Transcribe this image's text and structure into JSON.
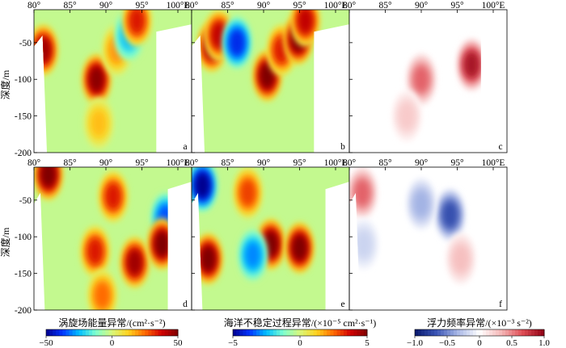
{
  "figure": {
    "ylabel": "深度/m",
    "lon_ticks": [
      "80°",
      "85°",
      "90°",
      "95°",
      "100°E"
    ],
    "depth_ticks": [
      "-50",
      "-100",
      "-150",
      "-200"
    ]
  },
  "chart_data": [
    {
      "type": "heatmap",
      "panel": "a",
      "variable": "eddy_energy_anomaly",
      "x": [
        80,
        85,
        90,
        95,
        100
      ],
      "ylim": [
        -200,
        -5
      ],
      "xlim": [
        80,
        100
      ],
      "colorbar": "a",
      "features": [
        {
          "lon": 81.3,
          "depth": -60,
          "value": 45
        },
        {
          "lon": 88.7,
          "depth": -100,
          "value": 48
        },
        {
          "lon": 91.5,
          "depth": -60,
          "value": 20
        },
        {
          "lon": 93.2,
          "depth": -40,
          "value": -25
        },
        {
          "lon": 94.3,
          "depth": -20,
          "value": 35
        },
        {
          "lon": 89,
          "depth": -160,
          "value": 15
        }
      ]
    },
    {
      "type": "heatmap",
      "panel": "b",
      "variable": "ocean_instability_anomaly",
      "x": [
        80,
        85,
        90,
        95,
        100
      ],
      "ylim": [
        -200,
        -5
      ],
      "xlim": [
        80,
        100
      ],
      "colorbar": "b",
      "features": [
        {
          "lon": 82.8,
          "depth": -55,
          "value": 4.5
        },
        {
          "lon": 83.8,
          "depth": -40,
          "value": 4
        },
        {
          "lon": 86.3,
          "depth": -50,
          "value": -4
        },
        {
          "lon": 90.5,
          "depth": -95,
          "value": 5
        },
        {
          "lon": 92.5,
          "depth": -60,
          "value": 3.5
        },
        {
          "lon": 94.8,
          "depth": -45,
          "value": 5
        },
        {
          "lon": 95.8,
          "depth": -20,
          "value": 4
        }
      ]
    },
    {
      "type": "heatmap",
      "panel": "c",
      "variable": "buoyancy_frequency_anomaly",
      "x": [
        80,
        85,
        90,
        95,
        100
      ],
      "ylim": [
        -200,
        -5
      ],
      "xlim": [
        80,
        100
      ],
      "colorbar": "c",
      "features": [
        {
          "lon": 97,
          "depth": -80,
          "value": 0.9
        },
        {
          "lon": 90,
          "depth": -100,
          "value": 0.6
        },
        {
          "lon": 88,
          "depth": -150,
          "value": 0.25
        }
      ]
    },
    {
      "type": "heatmap",
      "panel": "d",
      "variable": "eddy_energy_anomaly",
      "x": [
        80,
        85,
        90,
        95,
        100
      ],
      "ylim": [
        -200,
        -5
      ],
      "xlim": [
        80,
        100
      ],
      "colorbar": "a",
      "features": [
        {
          "lon": 82,
          "depth": -15,
          "value": 50
        },
        {
          "lon": 91,
          "depth": -45,
          "value": 35
        },
        {
          "lon": 98.3,
          "depth": -75,
          "value": -35
        },
        {
          "lon": 88.5,
          "depth": -120,
          "value": 35
        },
        {
          "lon": 94,
          "depth": -135,
          "value": 45
        },
        {
          "lon": 97.8,
          "depth": -110,
          "value": 50
        },
        {
          "lon": 89.5,
          "depth": -180,
          "value": 25
        }
      ]
    },
    {
      "type": "heatmap",
      "panel": "e",
      "variable": "ocean_instability_anomaly",
      "x": [
        80,
        85,
        90,
        95,
        100
      ],
      "ylim": [
        -200,
        -5
      ],
      "xlim": [
        80,
        100
      ],
      "colorbar": "b",
      "features": [
        {
          "lon": 81.5,
          "depth": -30,
          "value": -5
        },
        {
          "lon": 82.3,
          "depth": -130,
          "value": 5
        },
        {
          "lon": 91,
          "depth": -110,
          "value": 5
        },
        {
          "lon": 95,
          "depth": -115,
          "value": 5
        },
        {
          "lon": 88.5,
          "depth": -125,
          "value": -3
        },
        {
          "lon": 87.8,
          "depth": -40,
          "value": 3
        }
      ]
    },
    {
      "type": "heatmap",
      "panel": "f",
      "variable": "buoyancy_frequency_anomaly",
      "x": [
        80,
        85,
        90,
        95,
        100
      ],
      "ylim": [
        -200,
        -5
      ],
      "xlim": [
        80,
        100
      ],
      "colorbar": "c",
      "features": [
        {
          "lon": 81.8,
          "depth": -40,
          "value": 0.6
        },
        {
          "lon": 94,
          "depth": -70,
          "value": -0.7
        },
        {
          "lon": 90,
          "depth": -55,
          "value": -0.35
        },
        {
          "lon": 95.5,
          "depth": -130,
          "value": 0.3
        },
        {
          "lon": 82,
          "depth": -110,
          "value": -0.2
        }
      ]
    }
  ],
  "colorbars": {
    "a": {
      "label": "涡旋场能量异常/(cm²·s⁻²)",
      "ticks": [
        "−50",
        "0",
        "50"
      ],
      "range": [
        -50,
        50
      ]
    },
    "b": {
      "label": "海洋不稳定过程异常/(×10⁻⁵ cm²·s⁻¹)",
      "ticks": [
        "−5",
        "0",
        "5"
      ],
      "range": [
        -5,
        5
      ]
    },
    "c": {
      "label": "浮力频率异常/(×10⁻³ s⁻²)",
      "ticks": [
        "−1.0",
        "−0.5",
        "0",
        "0.5",
        "1.0"
      ],
      "range": [
        -1,
        1
      ]
    }
  },
  "colormaps": {
    "jet": [
      "#00008f",
      "#0033ff",
      "#00bfff",
      "#7fffd0",
      "#d9f77a",
      "#ffd21e",
      "#ff6a00",
      "#d10000",
      "#7f0000"
    ],
    "diverging": [
      "#08176b",
      "#3a55b5",
      "#a9b8e6",
      "#ffffff",
      "#f5b8b8",
      "#df4d55",
      "#8f0014"
    ]
  }
}
